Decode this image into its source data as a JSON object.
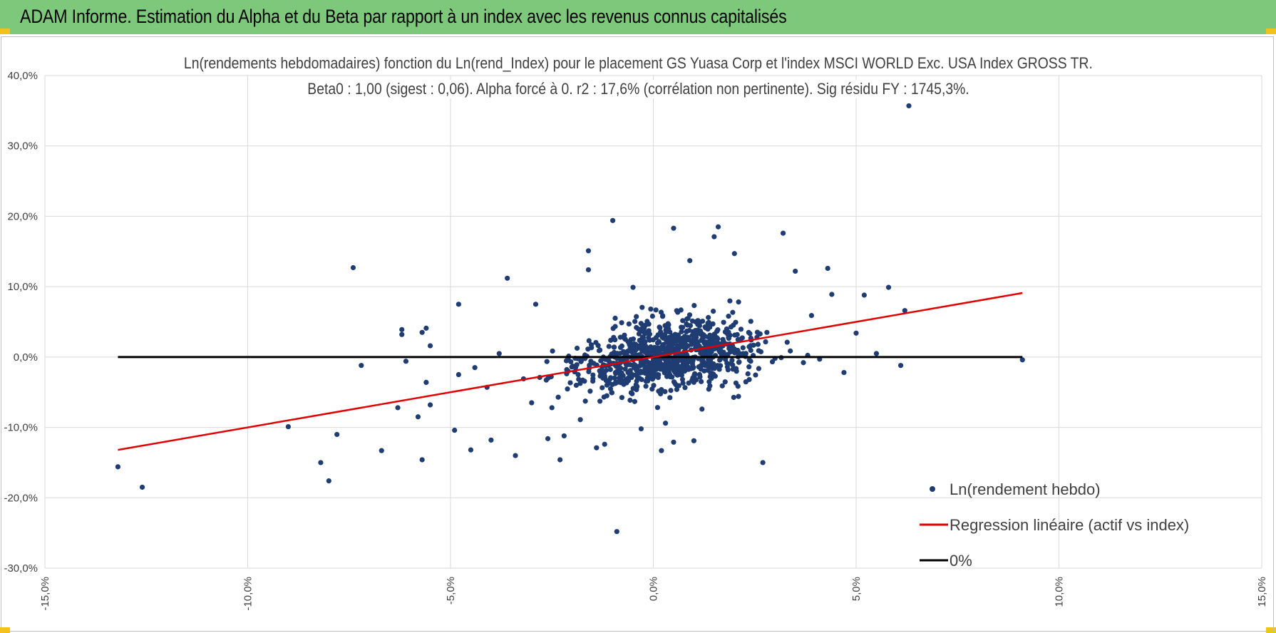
{
  "header": {
    "title": "ADAM Informe. Estimation du Alpha et du Beta par rapport à un index avec les revenus connus capitalisés"
  },
  "colors": {
    "header_bg": "#7dc87b",
    "corner": "#f2c21b",
    "points": "#1f3d73",
    "regression": "#e00000",
    "zero_line": "#000000",
    "grid": "#d9d9d9"
  },
  "chart_data": {
    "type": "scatter",
    "title": "Ln(rendements hebdomadaires) fonction du Ln(rend_Index) pour le placement GS Yuasa Corp et l'index MSCI WORLD Exc. USA Index GROSS TR.",
    "subtitle": "Beta0 : 1,00 (sigest : 0,06).  Alpha forcé à 0. r2 : 17,6% (corrélation non pertinente). Sig résidu FY : 1745,3%.",
    "xlim": [
      -15,
      15
    ],
    "ylim": [
      -30,
      40
    ],
    "x_ticks": [
      "-15,0%",
      "-10,0%",
      "-5,0%",
      "0,0%",
      "5,0%",
      "10,0%",
      "15,0%"
    ],
    "y_ticks": [
      "40,0%",
      "30,0%",
      "20,0%",
      "10,0%",
      "0,0%",
      "-10,0%",
      "-20,0%",
      "-30,0%"
    ],
    "grid": true,
    "legend_position": "bottom-right",
    "series": [
      {
        "name": "Ln(rendement hebdo)",
        "kind": "scatter",
        "points": [
          [
            -13.2,
            -15.6
          ],
          [
            -12.6,
            -18.5
          ],
          [
            -9.0,
            -9.9
          ],
          [
            -8.2,
            -15.0
          ],
          [
            -8.0,
            -17.6
          ],
          [
            -7.8,
            -11.0
          ],
          [
            -7.4,
            12.7
          ],
          [
            -7.2,
            -1.2
          ],
          [
            -6.7,
            -13.3
          ],
          [
            -6.3,
            -7.2
          ],
          [
            -6.2,
            3.2
          ],
          [
            -6.1,
            -0.6
          ],
          [
            -6.2,
            3.9
          ],
          [
            -5.8,
            -8.5
          ],
          [
            -5.7,
            -14.6
          ],
          [
            -5.7,
            3.5
          ],
          [
            -5.6,
            -3.6
          ],
          [
            -5.6,
            4.1
          ],
          [
            -5.5,
            1.6
          ],
          [
            -5.5,
            -6.8
          ],
          [
            -4.9,
            -10.4
          ],
          [
            -4.8,
            -2.5
          ],
          [
            -4.8,
            7.5
          ],
          [
            -4.5,
            -13.2
          ],
          [
            -4.4,
            -1.5
          ],
          [
            -4.1,
            -4.3
          ],
          [
            -4.0,
            -11.8
          ],
          [
            -3.8,
            0.5
          ],
          [
            -3.6,
            11.2
          ],
          [
            -3.4,
            -14.0
          ],
          [
            -3.2,
            -3.1
          ],
          [
            -3.0,
            -6.5
          ],
          [
            -2.9,
            7.5
          ],
          [
            -2.8,
            -2.9
          ],
          [
            -2.6,
            -11.6
          ],
          [
            -2.5,
            -7.2
          ],
          [
            -2.3,
            -14.6
          ],
          [
            -2.2,
            -11.2
          ],
          [
            -2.1,
            -2.0
          ],
          [
            -1.8,
            -8.9
          ],
          [
            -1.6,
            12.4
          ],
          [
            -1.6,
            15.1
          ],
          [
            -1.4,
            -12.9
          ],
          [
            -1.2,
            -12.4
          ],
          [
            -1.1,
            -1.2
          ],
          [
            -1.0,
            19.4
          ],
          [
            -0.9,
            -24.8
          ],
          [
            -0.8,
            -0.6
          ],
          [
            -0.6,
            4.7
          ],
          [
            -0.5,
            9.9
          ],
          [
            -0.4,
            -4.2
          ],
          [
            -0.3,
            -10.2
          ],
          [
            -0.2,
            -2.3
          ],
          [
            -0.1,
            0.7
          ],
          [
            0.2,
            -13.3
          ],
          [
            0.3,
            -9.4
          ],
          [
            0.5,
            -12.1
          ],
          [
            0.5,
            18.3
          ],
          [
            0.7,
            -1.3
          ],
          [
            0.9,
            13.7
          ],
          [
            1.0,
            -11.9
          ],
          [
            1.2,
            -7.4
          ],
          [
            1.4,
            -2.8
          ],
          [
            1.5,
            17.1
          ],
          [
            1.6,
            18.5
          ],
          [
            1.7,
            -4.1
          ],
          [
            2.0,
            14.7
          ],
          [
            2.1,
            -5.6
          ],
          [
            2.4,
            -0.6
          ],
          [
            2.7,
            -15.0
          ],
          [
            2.8,
            3.5
          ],
          [
            3.0,
            -0.2
          ],
          [
            3.2,
            17.6
          ],
          [
            3.3,
            2.1
          ],
          [
            3.5,
            12.2
          ],
          [
            3.7,
            -0.8
          ],
          [
            3.9,
            5.9
          ],
          [
            4.1,
            -0.3
          ],
          [
            4.3,
            12.6
          ],
          [
            4.4,
            8.9
          ],
          [
            4.7,
            -2.2
          ],
          [
            5.0,
            3.4
          ],
          [
            5.2,
            8.8
          ],
          [
            5.5,
            0.5
          ],
          [
            5.8,
            9.9
          ],
          [
            6.1,
            -1.2
          ],
          [
            6.2,
            6.6
          ],
          [
            6.3,
            35.7
          ],
          [
            9.1,
            -0.4
          ]
        ]
      },
      {
        "name": "Regression linéaire (actif vs index)",
        "kind": "line",
        "points": [
          [
            -13.2,
            -13.2
          ],
          [
            9.1,
            9.1
          ]
        ]
      },
      {
        "name": "0%",
        "kind": "line",
        "points": [
          [
            -13.2,
            0
          ],
          [
            9.1,
            0
          ]
        ]
      }
    ]
  }
}
